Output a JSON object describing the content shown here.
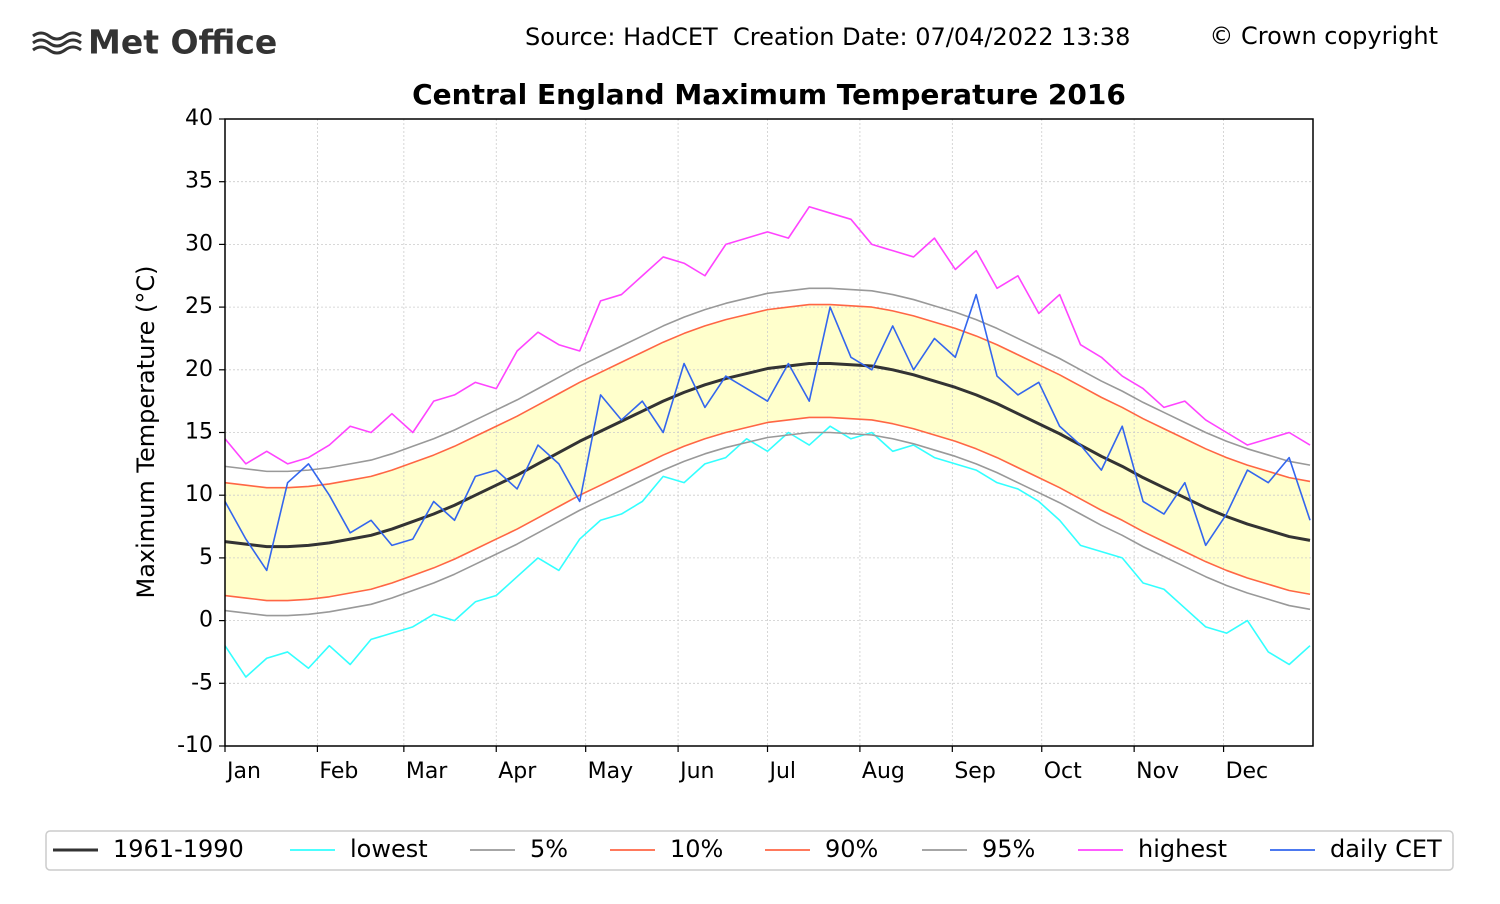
{
  "header": {
    "logo": "Met Office",
    "source": "Source: HadCET  Creation Date: 07/04/2022 13:38",
    "copyright": "© Crown copyright"
  },
  "chart_data": {
    "type": "line",
    "title": "Central England Maximum Temperature 2016",
    "ylabel": "Maximum Temperature (°C)",
    "xlim": [
      1,
      366
    ],
    "ylim": [
      -10,
      40
    ],
    "yticks": [
      -10,
      -5,
      0,
      5,
      10,
      15,
      20,
      25,
      30,
      35,
      40
    ],
    "xticks": [
      {
        "value": 1,
        "label": "Jan"
      },
      {
        "value": 32,
        "label": "Feb"
      },
      {
        "value": 61,
        "label": "Mar"
      },
      {
        "value": 92,
        "label": "Apr"
      },
      {
        "value": 122,
        "label": "May"
      },
      {
        "value": 153,
        "label": "Jun"
      },
      {
        "value": 183,
        "label": "Jul"
      },
      {
        "value": 214,
        "label": "Aug"
      },
      {
        "value": 245,
        "label": "Sep"
      },
      {
        "value": 275,
        "label": "Oct"
      },
      {
        "value": 306,
        "label": "Nov"
      },
      {
        "value": 336,
        "label": "Dec"
      }
    ],
    "grid": true,
    "band_color": "#ffffcc",
    "x": [
      1,
      8,
      15,
      22,
      29,
      36,
      43,
      50,
      57,
      64,
      71,
      78,
      85,
      92,
      99,
      106,
      113,
      120,
      127,
      134,
      141,
      148,
      155,
      162,
      169,
      176,
      183,
      190,
      197,
      204,
      211,
      218,
      225,
      232,
      239,
      246,
      253,
      260,
      267,
      274,
      281,
      288,
      295,
      302,
      309,
      316,
      323,
      330,
      337,
      344,
      351,
      358,
      365
    ],
    "series": [
      {
        "name": "1961-1990",
        "color": "#333333",
        "values": [
          6.3,
          6.1,
          5.9,
          5.9,
          6.0,
          6.2,
          6.5,
          6.8,
          7.3,
          7.9,
          8.5,
          9.2,
          10.0,
          10.8,
          11.6,
          12.5,
          13.4,
          14.3,
          15.1,
          15.9,
          16.7,
          17.5,
          18.2,
          18.8,
          19.3,
          19.7,
          20.1,
          20.3,
          20.5,
          20.5,
          20.4,
          20.3,
          20.0,
          19.6,
          19.1,
          18.6,
          18.0,
          17.3,
          16.5,
          15.7,
          14.9,
          14.0,
          13.1,
          12.3,
          11.4,
          10.6,
          9.8,
          9.0,
          8.3,
          7.7,
          7.2,
          6.7,
          6.4
        ]
      },
      {
        "name": "lowest",
        "color": "#33ffff",
        "values": [
          -2.0,
          -4.5,
          -3.0,
          -2.5,
          -3.8,
          -2.0,
          -3.5,
          -1.5,
          -1.0,
          -0.5,
          0.5,
          0.0,
          1.5,
          2.0,
          3.5,
          5.0,
          4.0,
          6.5,
          8.0,
          8.5,
          9.5,
          11.5,
          11.0,
          12.5,
          13.0,
          14.5,
          13.5,
          15.0,
          14.0,
          15.5,
          14.5,
          15.0,
          13.5,
          14.0,
          13.0,
          12.5,
          12.0,
          11.0,
          10.5,
          9.5,
          8.0,
          6.0,
          5.5,
          5.0,
          3.0,
          2.5,
          1.0,
          -0.5,
          -1.0,
          0.0,
          -2.5,
          -3.5,
          -2.0
        ]
      },
      {
        "name": "5%",
        "color": "#999999",
        "values": [
          0.8,
          0.6,
          0.4,
          0.4,
          0.5,
          0.7,
          1.0,
          1.3,
          1.8,
          2.4,
          3.0,
          3.7,
          4.5,
          5.3,
          6.1,
          7.0,
          7.9,
          8.8,
          9.6,
          10.4,
          11.2,
          12.0,
          12.7,
          13.3,
          13.8,
          14.2,
          14.6,
          14.8,
          15.0,
          15.0,
          14.9,
          14.8,
          14.5,
          14.1,
          13.6,
          13.1,
          12.5,
          11.8,
          11.0,
          10.2,
          9.4,
          8.5,
          7.6,
          6.8,
          5.9,
          5.1,
          4.3,
          3.5,
          2.8,
          2.2,
          1.7,
          1.2,
          0.9
        ]
      },
      {
        "name": "10%",
        "color": "#ff6644",
        "values": [
          2.0,
          1.8,
          1.6,
          1.6,
          1.7,
          1.9,
          2.2,
          2.5,
          3.0,
          3.6,
          4.2,
          4.9,
          5.7,
          6.5,
          7.3,
          8.2,
          9.1,
          10.0,
          10.8,
          11.6,
          12.4,
          13.2,
          13.9,
          14.5,
          15.0,
          15.4,
          15.8,
          16.0,
          16.2,
          16.2,
          16.1,
          16.0,
          15.7,
          15.3,
          14.8,
          14.3,
          13.7,
          13.0,
          12.2,
          11.4,
          10.6,
          9.7,
          8.8,
          8.0,
          7.1,
          6.3,
          5.5,
          4.7,
          4.0,
          3.4,
          2.9,
          2.4,
          2.1
        ]
      },
      {
        "name": "90%",
        "color": "#ff6644",
        "values": [
          11.0,
          10.8,
          10.6,
          10.6,
          10.7,
          10.9,
          11.2,
          11.5,
          12.0,
          12.6,
          13.2,
          13.9,
          14.7,
          15.5,
          16.3,
          17.2,
          18.1,
          19.0,
          19.8,
          20.6,
          21.4,
          22.2,
          22.9,
          23.5,
          24.0,
          24.4,
          24.8,
          25.0,
          25.2,
          25.2,
          25.1,
          25.0,
          24.7,
          24.3,
          23.8,
          23.3,
          22.7,
          22.0,
          21.2,
          20.4,
          19.6,
          18.7,
          17.8,
          17.0,
          16.1,
          15.3,
          14.5,
          13.7,
          13.0,
          12.4,
          11.9,
          11.4,
          11.1
        ]
      },
      {
        "name": "95%",
        "color": "#999999",
        "values": [
          12.3,
          12.1,
          11.9,
          11.9,
          12.0,
          12.2,
          12.5,
          12.8,
          13.3,
          13.9,
          14.5,
          15.2,
          16.0,
          16.8,
          17.6,
          18.5,
          19.4,
          20.3,
          21.1,
          21.9,
          22.7,
          23.5,
          24.2,
          24.8,
          25.3,
          25.7,
          26.1,
          26.3,
          26.5,
          26.5,
          26.4,
          26.3,
          26.0,
          25.6,
          25.1,
          24.6,
          24.0,
          23.3,
          22.5,
          21.7,
          20.9,
          20.0,
          19.1,
          18.3,
          17.4,
          16.6,
          15.8,
          15.0,
          14.3,
          13.7,
          13.2,
          12.7,
          12.4
        ]
      },
      {
        "name": "highest",
        "color": "#ff44ff",
        "values": [
          14.5,
          12.5,
          13.5,
          12.5,
          13.0,
          14.0,
          15.5,
          15.0,
          16.5,
          15.0,
          17.5,
          18.0,
          19.0,
          18.5,
          21.5,
          23.0,
          22.0,
          21.5,
          25.5,
          26.0,
          27.5,
          29.0,
          28.5,
          27.5,
          30.0,
          30.5,
          31.0,
          30.5,
          33.0,
          32.5,
          32.0,
          30.0,
          29.5,
          29.0,
          30.5,
          28.0,
          29.5,
          26.5,
          27.5,
          24.5,
          26.0,
          22.0,
          21.0,
          19.5,
          18.5,
          17.0,
          17.5,
          16.0,
          15.0,
          14.0,
          14.5,
          15.0,
          14.0
        ]
      },
      {
        "name": "daily CET",
        "color": "#3366ee",
        "values": [
          9.5,
          6.5,
          4.0,
          11.0,
          12.5,
          10.0,
          7.0,
          8.0,
          6.0,
          6.5,
          9.5,
          8.0,
          11.5,
          12.0,
          10.5,
          14.0,
          12.5,
          9.5,
          18.0,
          16.0,
          17.5,
          15.0,
          20.5,
          17.0,
          19.5,
          18.5,
          17.5,
          20.5,
          17.5,
          25.0,
          21.0,
          20.0,
          23.5,
          20.0,
          22.5,
          21.0,
          26.0,
          19.5,
          18.0,
          19.0,
          15.5,
          14.0,
          12.0,
          15.5,
          9.5,
          8.5,
          11.0,
          6.0,
          8.5,
          12.0,
          11.0,
          13.0,
          8.0
        ]
      }
    ]
  }
}
